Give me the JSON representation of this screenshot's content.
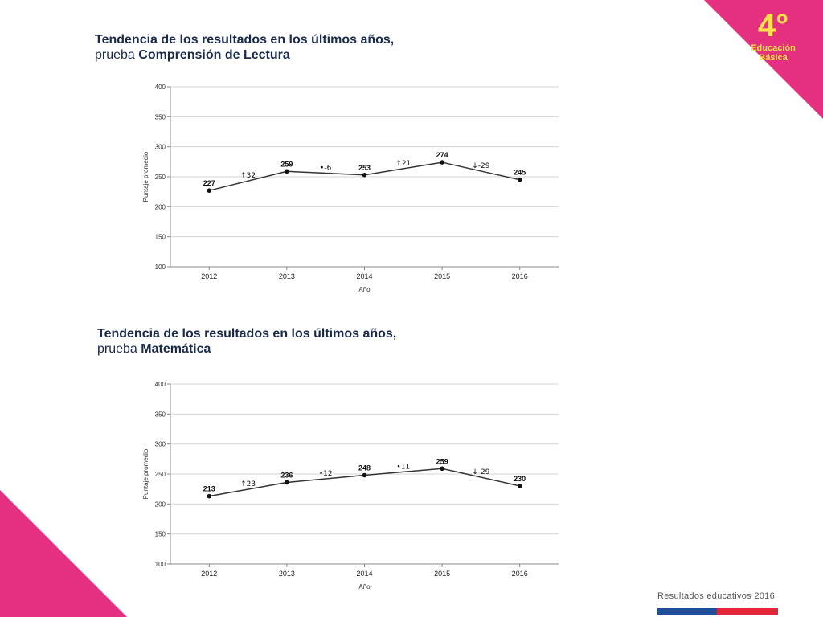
{
  "badge": {
    "grade": "4°",
    "level_line1": "Educación",
    "level_line2": "Básica"
  },
  "colors": {
    "accent": "#e5307f",
    "badge_text": "#ffe14a",
    "title": "#1a2a4a",
    "footer_blue": "#1f4e9c",
    "footer_red": "#e3253a"
  },
  "footer": {
    "text": "Resultados educativos 2016"
  },
  "charts": [
    {
      "title_line1": "Tendencia de los resultados en los últimos años,",
      "title_prefix": "prueba ",
      "title_subject": "Comprensión de Lectura"
    },
    {
      "title_line1": "Tendencia de los resultados en los últimos años,",
      "title_prefix": "prueba ",
      "title_subject": "Matemática"
    }
  ],
  "chart_data": [
    {
      "type": "line",
      "title": "Tendencia de los resultados en los últimos años, prueba Comprensión de Lectura",
      "xlabel": "Año",
      "ylabel": "Puntaje promedio",
      "categories": [
        "2012",
        "2013",
        "2014",
        "2015",
        "2016"
      ],
      "values": [
        227,
        259,
        253,
        274,
        245
      ],
      "ylim": [
        100,
        400
      ],
      "yticks": [
        100,
        150,
        200,
        250,
        300,
        350,
        400
      ],
      "grid": true,
      "changes": [
        {
          "symbol": "↑",
          "value": "32"
        },
        {
          "symbol": "•",
          "value": "-6"
        },
        {
          "symbol": "↑",
          "value": "21"
        },
        {
          "symbol": "↓",
          "value": "-29"
        }
      ]
    },
    {
      "type": "line",
      "title": "Tendencia de los resultados en los últimos años, prueba Matemática",
      "xlabel": "Año",
      "ylabel": "Puntaje promedio",
      "categories": [
        "2012",
        "2013",
        "2014",
        "2015",
        "2016"
      ],
      "values": [
        213,
        236,
        248,
        259,
        230
      ],
      "ylim": [
        100,
        400
      ],
      "yticks": [
        100,
        150,
        200,
        250,
        300,
        350,
        400
      ],
      "grid": true,
      "changes": [
        {
          "symbol": "↑",
          "value": "23"
        },
        {
          "symbol": "•",
          "value": "12"
        },
        {
          "symbol": "•",
          "value": "11"
        },
        {
          "symbol": "↓",
          "value": "-29"
        }
      ]
    }
  ]
}
